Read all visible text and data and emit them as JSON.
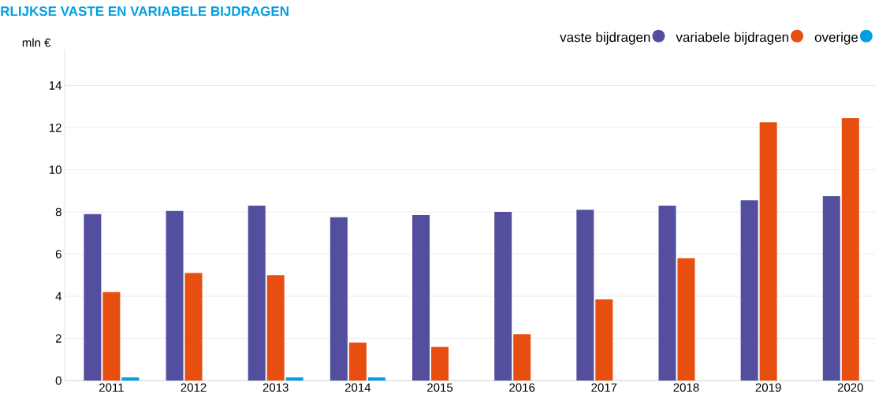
{
  "chart_data": {
    "type": "bar",
    "title": "RLIJKSE VASTE EN VARIABELE BIJDRAGEN",
    "ylabel": "mln €",
    "categories": [
      "2011",
      "2012",
      "2013",
      "2014",
      "2015",
      "2016",
      "2017",
      "2018",
      "2019",
      "2020"
    ],
    "series": [
      {
        "name": "vaste bijdragen",
        "color": "#534f9e",
        "values": [
          7.9,
          8.05,
          8.3,
          7.75,
          7.85,
          8.0,
          8.1,
          8.3,
          8.55,
          8.75
        ]
      },
      {
        "name": "variabele bijdragen",
        "color": "#e84e0f",
        "values": [
          4.2,
          5.1,
          5.0,
          1.8,
          1.6,
          2.2,
          3.85,
          5.8,
          12.25,
          12.45
        ]
      },
      {
        "name": "overige",
        "color": "#009fe3",
        "values": [
          0.15,
          null,
          0.15,
          0.15,
          null,
          null,
          null,
          null,
          null,
          null
        ]
      }
    ],
    "ylim": [
      0,
      15.7
    ],
    "yticks": [
      0,
      2,
      4,
      6,
      8,
      10,
      12,
      14
    ],
    "grid": "y",
    "legend": "top right"
  }
}
